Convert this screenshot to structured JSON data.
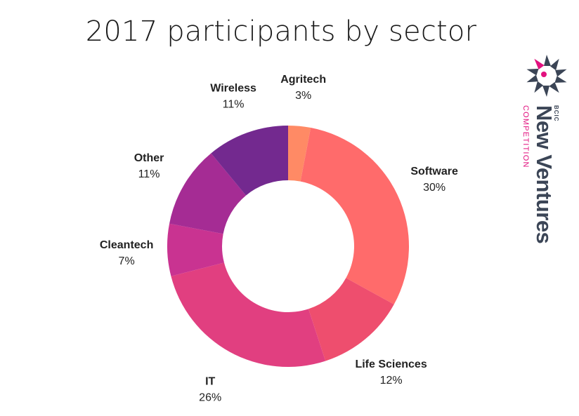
{
  "chart_data": {
    "type": "pie",
    "title": "2017 participants by sector",
    "donut": true,
    "slices": [
      {
        "label": "Agritech",
        "value": 3,
        "value_label": "3%",
        "color": "#ff8a65"
      },
      {
        "label": "Software",
        "value": 30,
        "value_label": "30%",
        "color": "#ff6b6b"
      },
      {
        "label": "Life Sciences",
        "value": 12,
        "value_label": "12%",
        "color": "#ee4e6e"
      },
      {
        "label": "IT",
        "value": 26,
        "value_label": "26%",
        "color": "#e13f80"
      },
      {
        "label": "Cleantech",
        "value": 7,
        "value_label": "7%",
        "color": "#c93391"
      },
      {
        "label": "Other",
        "value": 11,
        "value_label": "11%",
        "color": "#a52c94"
      },
      {
        "label": "Wireless",
        "value": 11,
        "value_label": "11%",
        "color": "#73298f"
      }
    ]
  },
  "brand": {
    "top_text": "BCIC",
    "name": "New Ventures",
    "subtitle": "COMPETITION",
    "primary_color": "#3b4556",
    "accent_color": "#e2117f"
  }
}
